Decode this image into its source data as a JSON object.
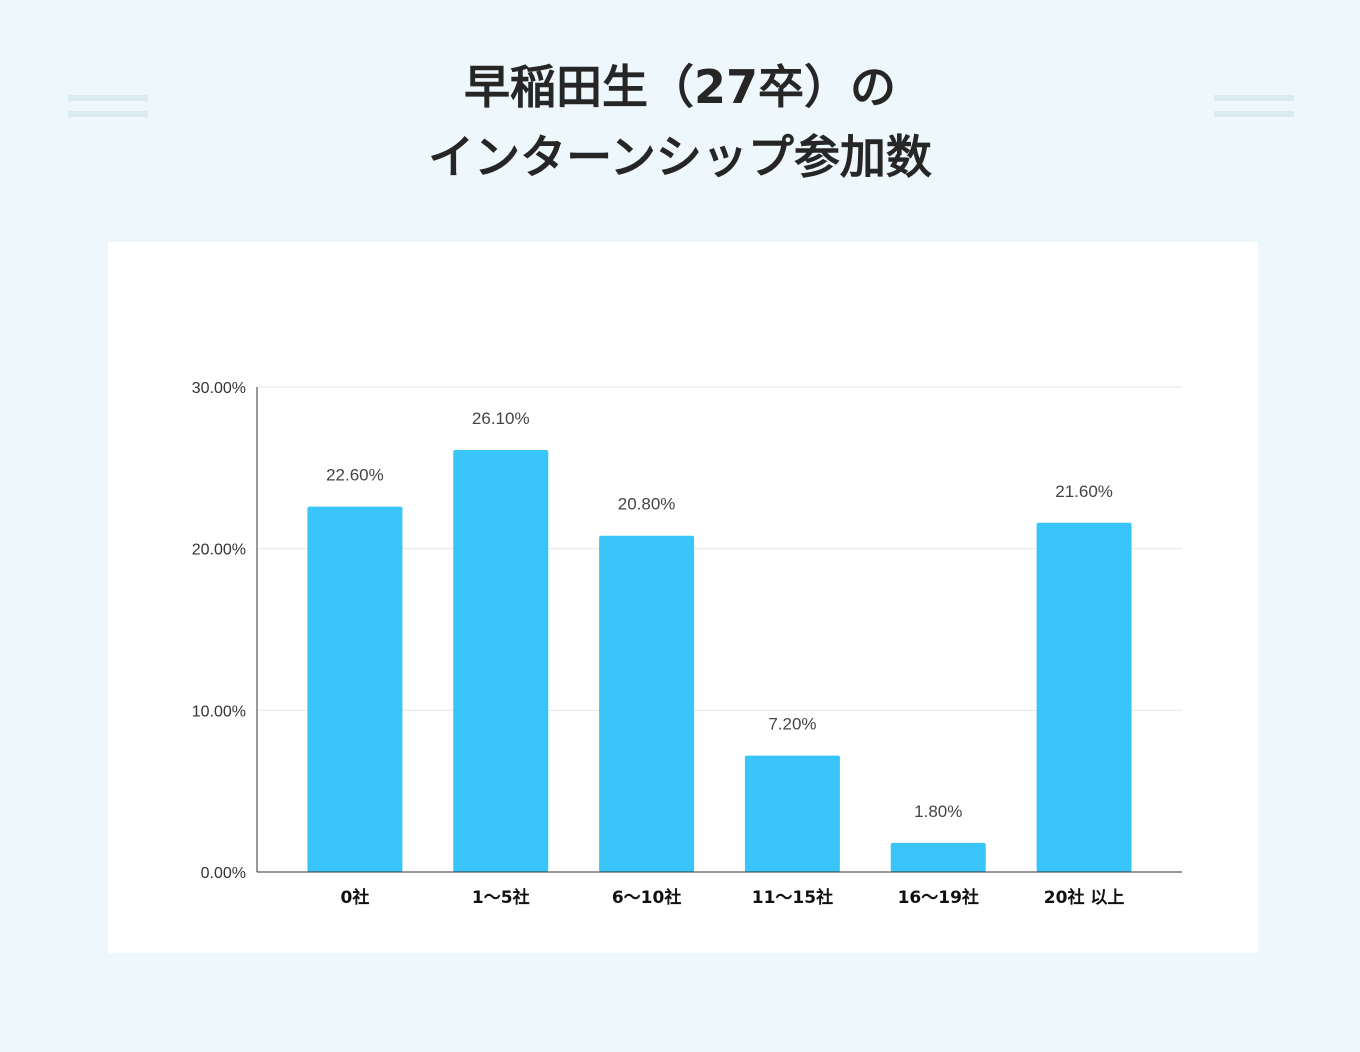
{
  "title": {
    "line1": "早稲田生（27卒）の",
    "line2": "インターンシップ参加数"
  },
  "colors": {
    "background": "#eef7fb",
    "bar": "#39c5f9",
    "decor": "#dcebf0"
  },
  "chart_data": {
    "type": "bar",
    "categories": [
      "0社",
      "1～5社",
      "6～10社",
      "11～15社",
      "16～19社",
      "20社 以上"
    ],
    "values": [
      22.6,
      26.1,
      20.8,
      7.2,
      1.8,
      21.6
    ],
    "data_labels": [
      "22.60%",
      "26.10%",
      "20.80%",
      "7.20%",
      "1.80%",
      "21.60%"
    ],
    "y_ticks": [
      0,
      10,
      20,
      30
    ],
    "y_tick_labels": [
      "0.00%",
      "10.00%",
      "20.00%",
      "30.00%"
    ],
    "ylim": [
      0,
      30
    ],
    "grid": true,
    "legend": "none",
    "xlabel": "",
    "ylabel": ""
  }
}
